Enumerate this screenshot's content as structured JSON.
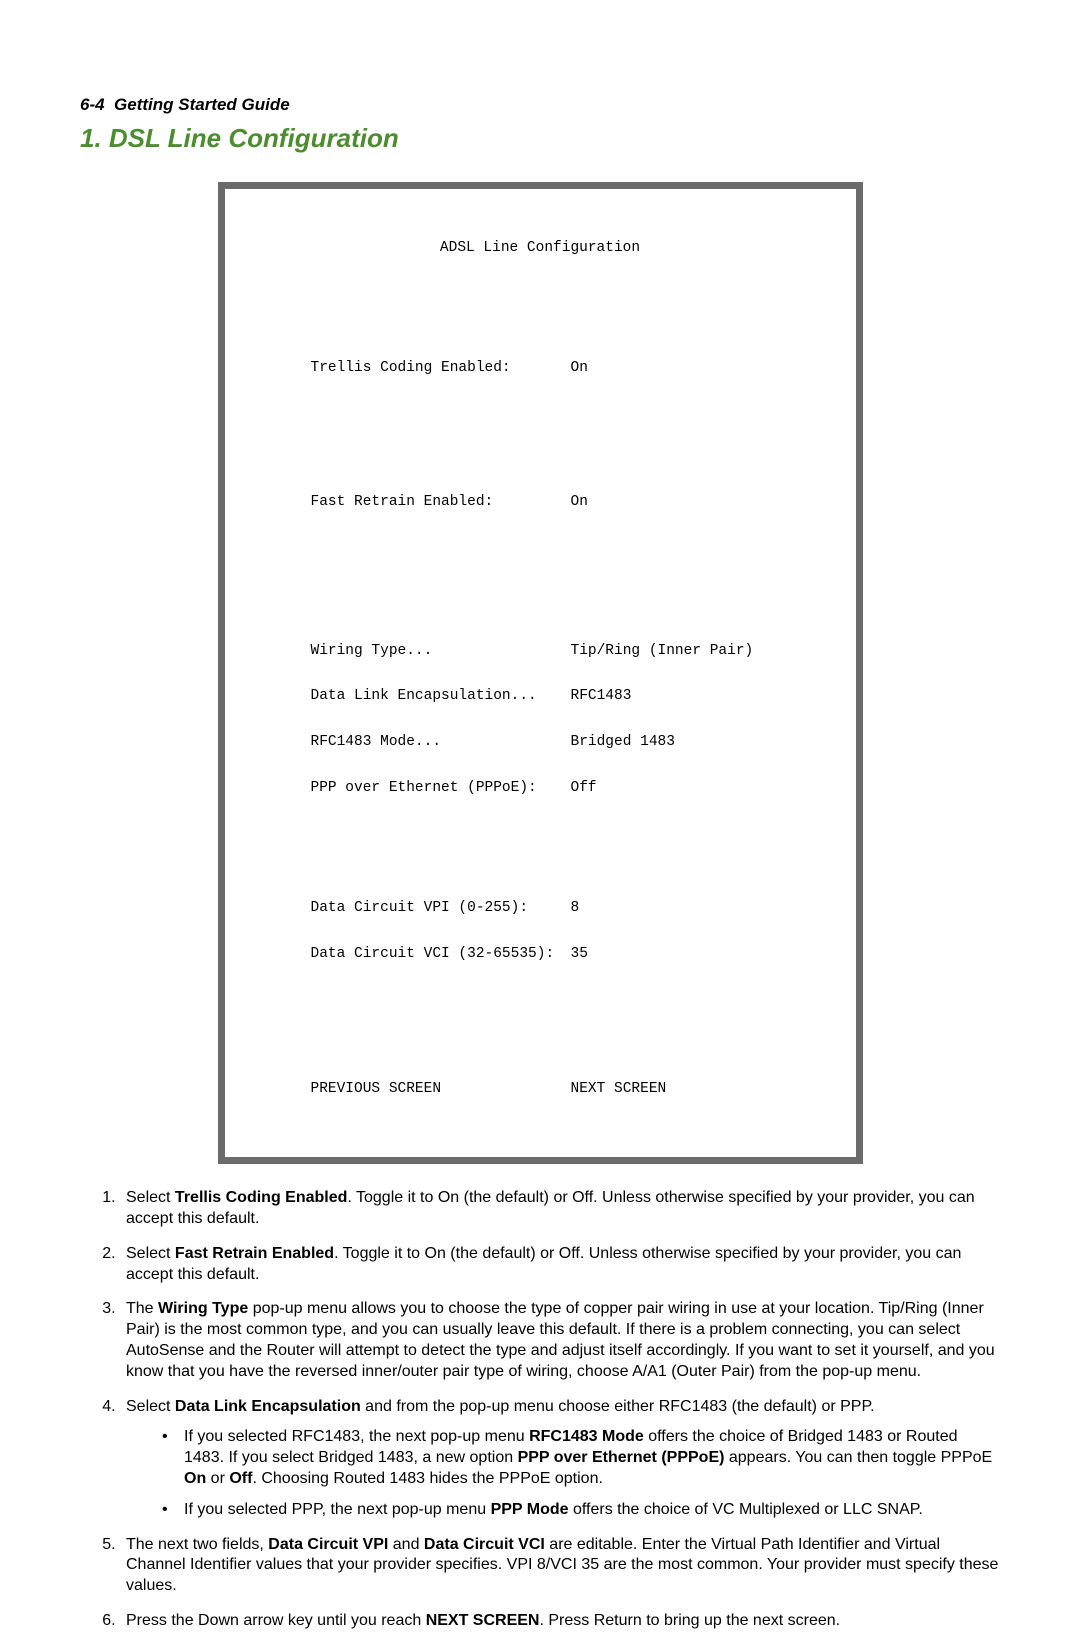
{
  "header": {
    "page_num": "6-4",
    "guide_name": "Getting Started Guide"
  },
  "section_title": "1. DSL Line Configuration",
  "terminal": {
    "title": "ADSL Line Configuration",
    "rows_block1": [
      {
        "label": "Trellis Coding Enabled:",
        "value": "On"
      }
    ],
    "rows_block2": [
      {
        "label": "Fast Retrain Enabled:",
        "value": "On"
      }
    ],
    "rows_block3": [
      {
        "label": "Wiring Type...",
        "value": "Tip/Ring (Inner Pair)"
      },
      {
        "label": "Data Link Encapsulation...",
        "value": "RFC1483"
      },
      {
        "label": "RFC1483 Mode...",
        "value": "Bridged 1483"
      },
      {
        "label": "PPP over Ethernet (PPPoE):",
        "value": "Off"
      }
    ],
    "rows_block4": [
      {
        "label": "Data Circuit VPI (0-255):",
        "value": "8"
      },
      {
        "label": "Data Circuit VCI (32-65535):",
        "value": "35"
      }
    ],
    "nav": {
      "prev": "PREVIOUS SCREEN",
      "next": "NEXT SCREEN"
    }
  },
  "steps": {
    "s1": {
      "pre": "Select ",
      "bold": "Trellis Coding Enabled",
      "post": ". Toggle it to On (the default) or Off. Unless otherwise specified by your provider, you can accept this default."
    },
    "s2": {
      "pre": "Select ",
      "bold": "Fast Retrain Enabled",
      "post": ". Toggle it to On (the default) or Off. Unless otherwise specified by your provider, you can accept this default."
    },
    "s3": {
      "pre": "The ",
      "bold": "Wiring Type",
      "post": " pop-up menu allows you to choose the type of copper pair wiring in use at your location. Tip/Ring (Inner Pair) is the most common type, and you can usually leave this default. If there is a problem connecting, you can select AutoSense and the Router will attempt to detect the type and adjust itself accordingly. If you want to set it yourself, and you know that you have the reversed inner/outer pair type of wiring, choose A/A1 (Outer Pair) from the pop-up menu."
    },
    "s4": {
      "pre": "Select ",
      "bold": "Data Link Encapsulation",
      "post": " and from the pop-up menu choose either RFC1483 (the default) or PPP.",
      "sub1": {
        "t1": "If you selected RFC1483, the next pop-up menu ",
        "b1": "RFC1483 Mode",
        "t2": " offers the choice of Bridged 1483 or Routed 1483. If you select Bridged 1483, a new option ",
        "b2": "PPP over Ethernet (PPPoE)",
        "t3": " appears. You can then toggle PPPoE ",
        "b3": "On",
        "t4": " or ",
        "b4": "Off",
        "t5": ". Choosing Routed 1483 hides the PPPoE option."
      },
      "sub2": {
        "t1": "If you selected PPP, the next pop-up menu ",
        "b1": "PPP Mode",
        "t2": " offers the choice of VC Multiplexed or LLC SNAP."
      }
    },
    "s5": {
      "t1": "The next two fields, ",
      "b1": "Data Circuit VPI",
      "t2": " and ",
      "b2": "Data Circuit VCI",
      "t3": " are editable. Enter the Virtual Path Identifier and Virtual Channel Identifier values that your provider specifies. VPI 8/VCI 35 are the most common. Your provider must specify these values."
    },
    "s6": {
      "t1": "Press the Down arrow key until you reach ",
      "b1": "NEXT SCREEN",
      "t2": ". Press Return to bring up the next screen."
    }
  }
}
